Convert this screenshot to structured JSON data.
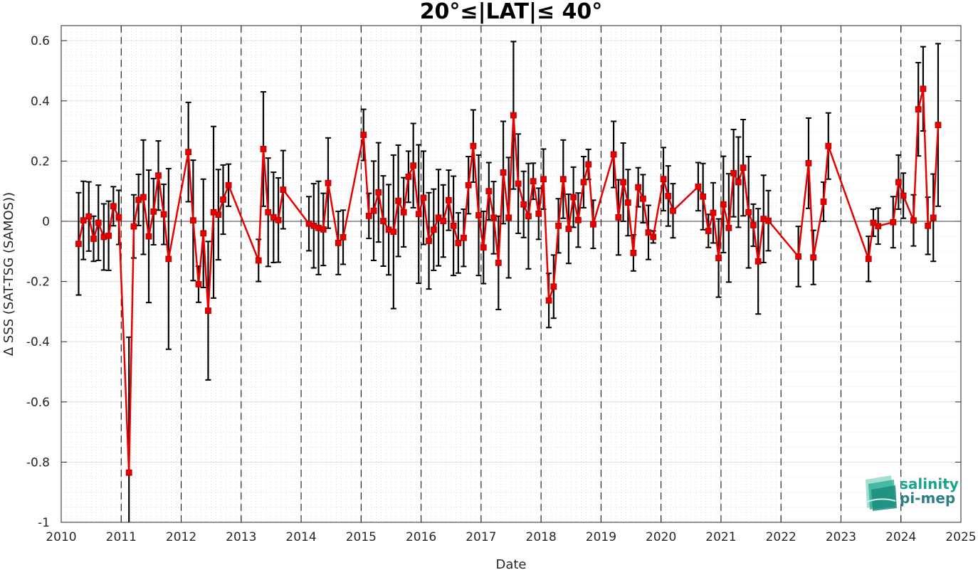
{
  "chart_data": {
    "type": "line",
    "title": "20°≤|LAT|≤ 40°",
    "xlabel": "Date",
    "ylabel": "Δ SSS (SAT-TSG (SAMOS))",
    "xlim": [
      2010,
      2025
    ],
    "ylim": [
      -1,
      0.65
    ],
    "x_ticks": [
      "2010",
      "2011",
      "2012",
      "2013",
      "2014",
      "2015",
      "2016",
      "2017",
      "2018",
      "2019",
      "2020",
      "2021",
      "2022",
      "2023",
      "2024",
      "2025"
    ],
    "y_ticks": [
      "-1",
      "-0.8",
      "-0.6",
      "-0.4",
      "-0.2",
      "0",
      "0.2",
      "0.4",
      "0.6"
    ],
    "grid": "on",
    "year_separators": "dashed",
    "series": [
      {
        "color": "#e60000",
        "errorbar_color": "#000000",
        "x": [
          2010.29,
          2010.37,
          2010.46,
          2010.54,
          2010.62,
          2010.71,
          2010.79,
          2010.87,
          2010.96,
          2011.13,
          2011.21,
          2011.29,
          2011.37,
          2011.46,
          2011.54,
          2011.62,
          2011.71,
          2011.79,
          2012.12,
          2012.2,
          2012.29,
          2012.37,
          2012.45,
          2012.54,
          2012.62,
          2012.7,
          2012.79,
          2013.29,
          2013.37,
          2013.45,
          2013.54,
          2013.62,
          2013.7,
          2014.13,
          2014.21,
          2014.29,
          2014.37,
          2014.45,
          2014.62,
          2014.7,
          2015.04,
          2015.13,
          2015.21,
          2015.29,
          2015.37,
          2015.46,
          2015.54,
          2015.62,
          2015.71,
          2015.79,
          2015.87,
          2015.96,
          2016.04,
          2016.13,
          2016.21,
          2016.29,
          2016.37,
          2016.46,
          2016.54,
          2016.62,
          2016.71,
          2016.79,
          2016.87,
          2016.96,
          2017.04,
          2017.13,
          2017.21,
          2017.29,
          2017.37,
          2017.46,
          2017.54,
          2017.62,
          2017.71,
          2017.79,
          2017.87,
          2017.96,
          2018.04,
          2018.13,
          2018.21,
          2018.29,
          2018.37,
          2018.46,
          2018.54,
          2018.62,
          2018.71,
          2018.79,
          2018.87,
          2019.21,
          2019.29,
          2019.37,
          2019.45,
          2019.54,
          2019.62,
          2019.7,
          2019.79,
          2019.87,
          2020.04,
          2020.12,
          2020.2,
          2020.62,
          2020.7,
          2020.79,
          2020.87,
          2020.96,
          2021.04,
          2021.13,
          2021.21,
          2021.29,
          2021.37,
          2021.46,
          2021.54,
          2021.62,
          2021.71,
          2021.79,
          2022.29,
          2022.46,
          2022.54,
          2022.71,
          2022.79,
          2023.46,
          2023.54,
          2023.62,
          2023.87,
          2023.96,
          2024.04,
          2024.21,
          2024.29,
          2024.37,
          2024.45,
          2024.54,
          2024.62
        ],
        "y": [
          -0.075,
          0.003,
          0.016,
          -0.058,
          -0.005,
          -0.052,
          -0.048,
          0.05,
          0.013,
          -0.835,
          -0.017,
          0.071,
          0.08,
          -0.05,
          0.032,
          0.152,
          0.023,
          -0.125,
          0.23,
          0.003,
          -0.209,
          -0.04,
          -0.297,
          0.03,
          0.022,
          0.072,
          0.12,
          -0.13,
          0.24,
          0.03,
          0.013,
          0.004,
          0.105,
          -0.008,
          -0.015,
          -0.022,
          -0.027,
          0.127,
          -0.072,
          -0.053,
          0.287,
          0.018,
          0.035,
          0.096,
          0.001,
          -0.028,
          -0.035,
          0.068,
          0.03,
          0.148,
          0.185,
          0.024,
          0.078,
          -0.065,
          -0.028,
          0.012,
          0.001,
          0.07,
          -0.015,
          -0.072,
          -0.055,
          0.12,
          0.25,
          0.02,
          -0.087,
          0.1,
          0.012,
          -0.138,
          0.162,
          0.012,
          0.352,
          0.125,
          0.056,
          0.017,
          0.133,
          0.025,
          0.14,
          -0.263,
          -0.217,
          -0.015,
          0.14,
          -0.025,
          0.08,
          0.004,
          0.13,
          0.189,
          -0.01,
          0.222,
          0.013,
          0.13,
          0.062,
          -0.105,
          0.113,
          0.075,
          -0.037,
          -0.052,
          0.14,
          0.084,
          0.035,
          0.115,
          0.082,
          -0.032,
          0.028,
          -0.122,
          0.056,
          -0.022,
          0.16,
          0.13,
          0.178,
          0.03,
          -0.013,
          -0.133,
          0.008,
          0.002,
          -0.117,
          0.193,
          -0.12,
          0.065,
          0.25,
          -0.125,
          -0.005,
          -0.016,
          -0.003,
          0.13,
          0.085,
          0.003,
          0.372,
          0.44,
          -0.015,
          0.012,
          0.32
        ],
        "err": [
          0.17,
          0.13,
          0.115,
          0.075,
          0.125,
          0.11,
          0.115,
          0.065,
          0.09,
          0.45,
          0.105,
          0.085,
          0.19,
          0.22,
          0.11,
          0.115,
          0.1,
          0.3,
          0.165,
          0.2,
          0.06,
          0.18,
          0.23,
          0.285,
          0.15,
          0.115,
          0.07,
          0.07,
          0.19,
          0.18,
          0.15,
          0.14,
          0.13,
          0.09,
          0.14,
          0.155,
          0.12,
          0.15,
          0.105,
          0.09,
          0.085,
          0.075,
          0.165,
          0.165,
          0.15,
          0.15,
          0.255,
          0.185,
          0.115,
          0.085,
          0.14,
          0.23,
          0.155,
          0.16,
          0.135,
          0.16,
          0.12,
          0.1,
          0.165,
          0.1,
          0.095,
          0.095,
          0.12,
          0.2,
          0.12,
          0.095,
          0.12,
          0.155,
          0.17,
          0.2,
          0.245,
          0.165,
          0.11,
          0.175,
          0.06,
          0.085,
          0.1,
          0.09,
          0.105,
          0.09,
          0.13,
          0.115,
          0.1,
          0.09,
          0.085,
          0.05,
          0.08,
          0.11,
          0.125,
          0.13,
          0.11,
          0.06,
          0.065,
          0.08,
          0.09,
          0.02,
          0.105,
          0.1,
          0.09,
          0.08,
          0.11,
          0.055,
          0.1,
          0.13,
          0.16,
          0.18,
          0.145,
          0.15,
          0.16,
          0.185,
          0.07,
          0.175,
          0.145,
          0.1,
          0.1,
          0.15,
          0.09,
          0.065,
          0.11,
          0.075,
          0.045,
          0.06,
          0.085,
          0.09,
          0.075,
          0.085,
          0.155,
          0.14,
          0.095,
          0.145,
          0.27
        ]
      }
    ]
  },
  "logo": {
    "line1": "salinity",
    "line2": "pi-mep"
  }
}
